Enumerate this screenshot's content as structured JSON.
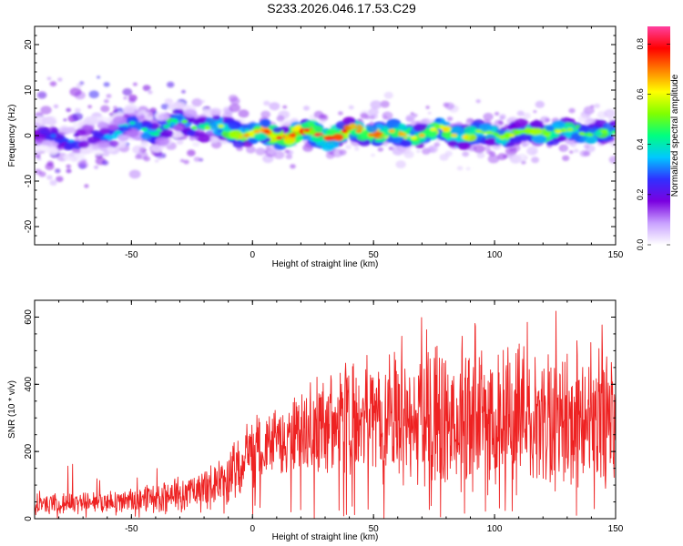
{
  "title": "S233.2026.046.17.53.C29",
  "chart_data": [
    {
      "type": "heatmap",
      "xlabel": "Height of straight line (km)",
      "ylabel": "Frequency (Hz)",
      "xlim": [
        -90,
        150
      ],
      "ylim": [
        -24,
        24
      ],
      "xticks": [
        -50,
        0,
        50,
        100,
        150
      ],
      "yticks": [
        -20,
        -10,
        0,
        10,
        20
      ],
      "colorbar": {
        "label": "Normalized spectral amplitude",
        "range": [
          0,
          0.87
        ],
        "ticks": [
          "0.0",
          "0.2",
          "0.4",
          "0.6",
          "0.8"
        ],
        "tick_values": [
          0.0,
          0.2,
          0.4,
          0.6,
          0.8
        ],
        "colors": [
          "#ffffff",
          "#c8a0ff",
          "#7a00e0",
          "#3030ff",
          "#00c8ff",
          "#00ff80",
          "#80ff00",
          "#ffff00",
          "#ff8000",
          "#ff0000",
          "#ff40a0"
        ]
      },
      "ridge": {
        "description_values": "signal centered near 0 Hz",
        "center_frequency": [
          [
            -90,
            0
          ],
          [
            -70,
            -1
          ],
          [
            -50,
            2
          ],
          [
            -40,
            1
          ],
          [
            -30,
            3
          ],
          [
            -20,
            2
          ],
          [
            -10,
            1
          ],
          [
            0,
            0.5
          ],
          [
            10,
            0
          ],
          [
            20,
            0.5
          ],
          [
            30,
            0
          ],
          [
            40,
            0.5
          ],
          [
            50,
            1
          ],
          [
            60,
            0
          ],
          [
            70,
            0.5
          ],
          [
            80,
            1
          ],
          [
            90,
            0
          ],
          [
            100,
            0.5
          ],
          [
            110,
            0
          ],
          [
            120,
            1
          ],
          [
            130,
            0.5
          ],
          [
            140,
            1
          ],
          [
            150,
            0
          ]
        ],
        "peak_amplitude": [
          [
            -90,
            0.3
          ],
          [
            -70,
            0.35
          ],
          [
            -50,
            0.45
          ],
          [
            -30,
            0.5
          ],
          [
            -20,
            0.55
          ],
          [
            -10,
            0.6
          ],
          [
            0,
            0.75
          ],
          [
            10,
            0.85
          ],
          [
            20,
            0.8
          ],
          [
            30,
            0.87
          ],
          [
            40,
            0.8
          ],
          [
            50,
            0.75
          ],
          [
            60,
            0.7
          ],
          [
            80,
            0.65
          ],
          [
            100,
            0.6
          ],
          [
            120,
            0.6
          ],
          [
            140,
            0.55
          ],
          [
            150,
            0.5
          ]
        ]
      }
    },
    {
      "type": "line",
      "xlabel": "Height of straight line (km)",
      "ylabel": "SNR (10 * v/v)",
      "xlim": [
        -90,
        150
      ],
      "ylim": [
        0,
        650
      ],
      "xticks": [
        -50,
        0,
        50,
        100,
        150
      ],
      "yticks": [
        0,
        200,
        400,
        600
      ],
      "color": "#ee2222",
      "envelope": {
        "x": [
          -90,
          -75,
          -60,
          -50,
          -40,
          -30,
          -20,
          -10,
          0,
          10,
          20,
          30,
          40,
          50,
          60,
          70,
          80,
          90,
          100,
          110,
          120,
          130,
          140,
          150
        ],
        "mean": [
          40,
          45,
          50,
          55,
          60,
          70,
          90,
          130,
          190,
          230,
          250,
          290,
          300,
          300,
          290,
          290,
          290,
          290,
          290,
          290,
          290,
          290,
          280,
          280
        ],
        "spread": [
          25,
          30,
          30,
          35,
          40,
          50,
          60,
          80,
          90,
          100,
          110,
          150,
          170,
          180,
          190,
          200,
          200,
          200,
          200,
          200,
          200,
          210,
          210,
          200
        ],
        "peak": [
          70,
          165,
          110,
          140,
          150,
          180,
          250,
          230,
          310,
          370,
          390,
          480,
          545,
          560,
          570,
          600,
          590,
          600,
          550,
          590,
          640,
          635,
          600,
          630
        ]
      }
    }
  ]
}
